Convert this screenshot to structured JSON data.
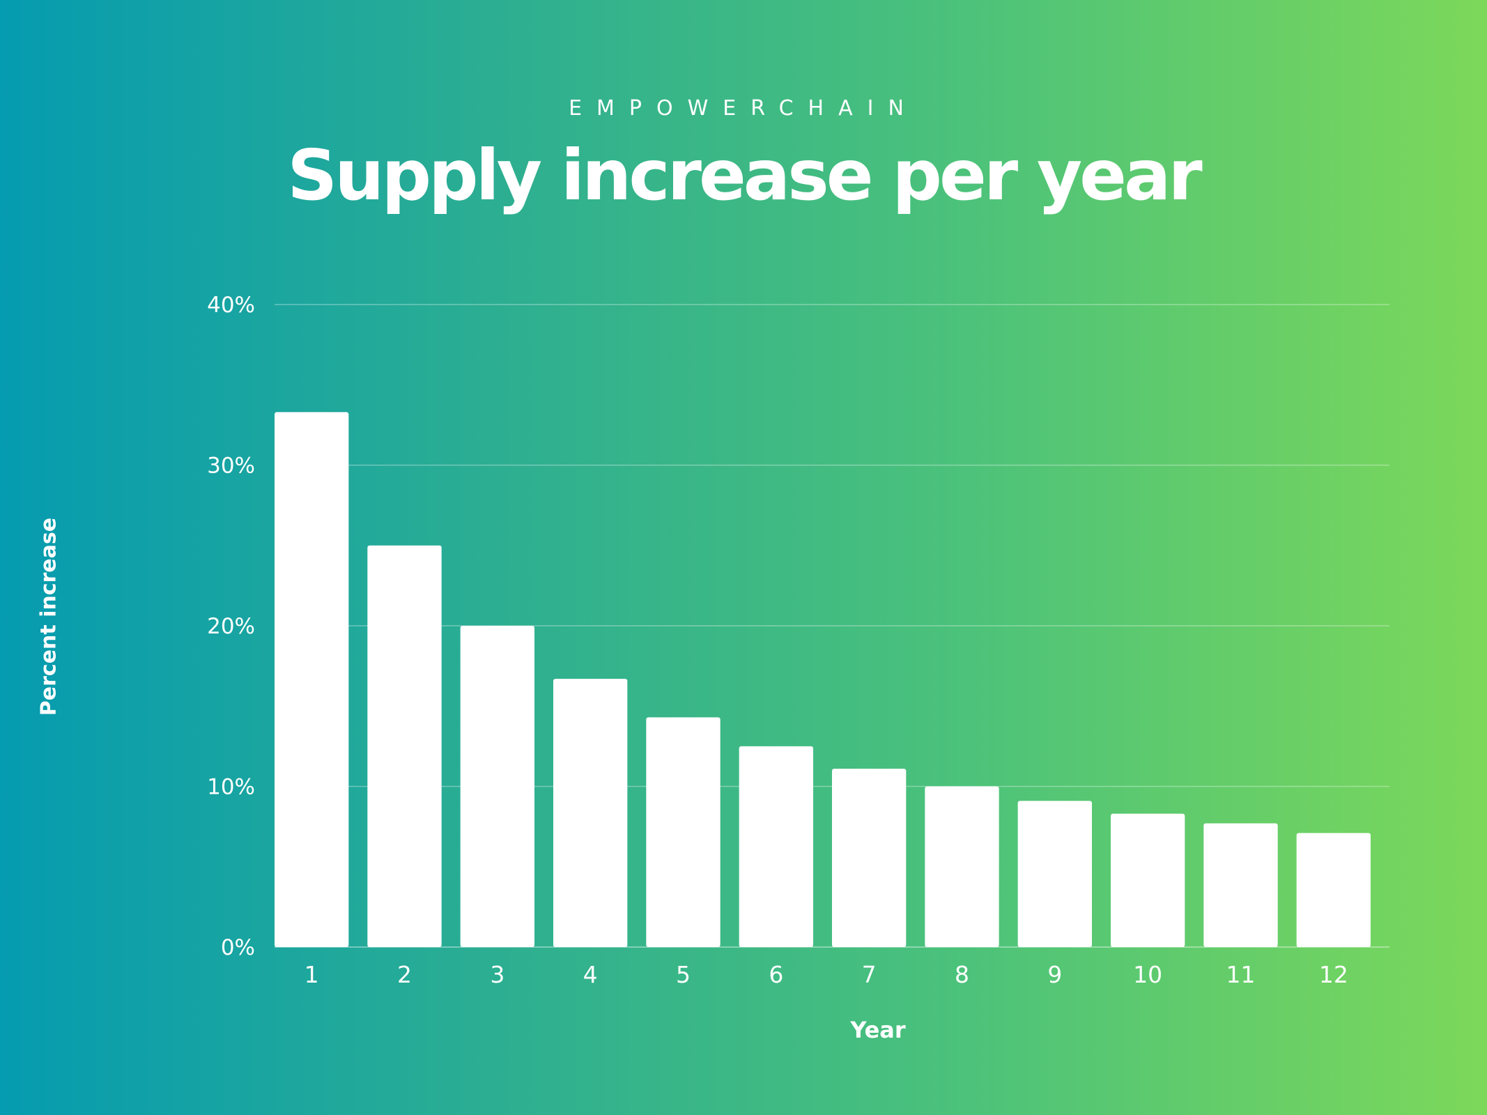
{
  "header": {
    "brand": "EMPOWERCHAIN",
    "title": "Supply increase per year"
  },
  "chart_data": {
    "type": "bar",
    "title": "Supply increase per year",
    "xlabel": "Year",
    "ylabel": "Percent increase",
    "categories": [
      "1",
      "2",
      "3",
      "4",
      "5",
      "6",
      "7",
      "8",
      "9",
      "10",
      "11",
      "12"
    ],
    "values": [
      33.3,
      25.0,
      20.0,
      16.7,
      14.3,
      12.5,
      11.1,
      10.0,
      9.1,
      8.3,
      7.7,
      7.1
    ],
    "yticks": [
      "0%",
      "10%",
      "20%",
      "30%",
      "40%"
    ],
    "ylim": [
      0,
      40
    ],
    "grid": true,
    "bar_color": "#ffffff"
  }
}
